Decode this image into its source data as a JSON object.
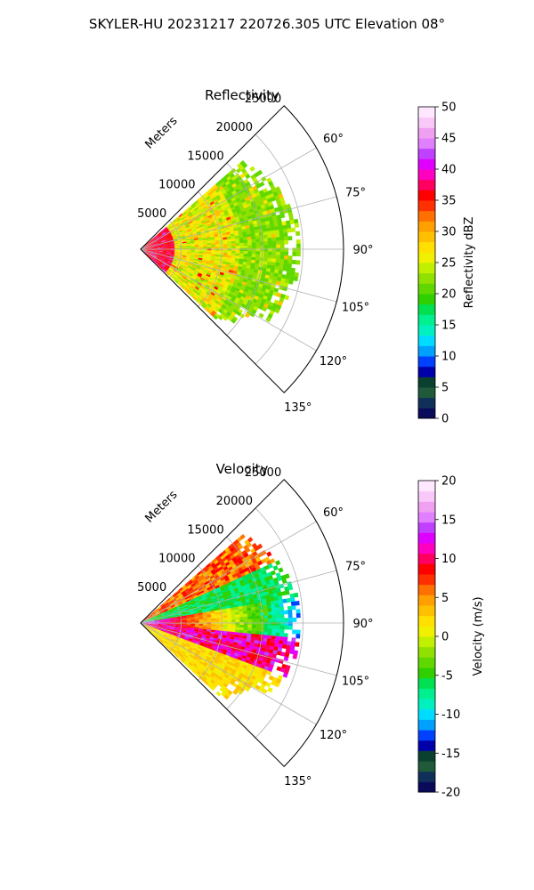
{
  "figure": {
    "suptitle": "SKYLER-HU  20231217  220726.305 UTC Elevation 08°"
  },
  "chart_data": [
    {
      "type": "heatmap",
      "subtype": "polar-sector",
      "title": "Reflectivity",
      "range_axis_label": "Meters",
      "range_ticks": [
        5000,
        10000,
        15000,
        20000,
        25000
      ],
      "range_max": 25000,
      "theta_ticks": [
        60,
        75,
        90,
        105,
        120,
        135
      ],
      "theta_tick_labels": [
        "60°",
        "75°",
        "90°",
        "105°",
        "120°",
        "135°"
      ],
      "theta_range": [
        45,
        135
      ],
      "grid": true,
      "colorbar": {
        "label": "Reflectivity dBZ",
        "min": 0,
        "max": 50,
        "ticks": [
          0,
          5,
          10,
          15,
          20,
          25,
          30,
          35,
          40,
          45,
          50
        ],
        "colors": [
          "#0a0a5a",
          "#10305a",
          "#1f5a3a",
          "#0a4030",
          "#0000aa",
          "#0040ff",
          "#00a0ff",
          "#00dcff",
          "#00f0c0",
          "#00f090",
          "#00e050",
          "#30d000",
          "#60d800",
          "#90e000",
          "#c0f000",
          "#f0f000",
          "#ffe000",
          "#ffc000",
          "#ffa000",
          "#ff7000",
          "#ff3000",
          "#ff0000",
          "#ff0060",
          "#ff00c0",
          "#e000ff",
          "#c040ff",
          "#e080ff",
          "#f0a0f0",
          "#f8c8f8",
          "#ffe8ff"
        ]
      },
      "field_description_values": {
        "near_range_dbz": [
          35,
          38
        ],
        "mid_range_dbz": [
          22,
          30
        ],
        "far_range_dbz": [
          20,
          24
        ],
        "max_data_range_m": 20000
      }
    },
    {
      "type": "heatmap",
      "subtype": "polar-sector",
      "title": "Velocity",
      "range_axis_label": "Meters",
      "range_ticks": [
        5000,
        10000,
        15000,
        20000,
        25000
      ],
      "range_max": 25000,
      "theta_ticks": [
        60,
        75,
        90,
        105,
        120,
        135
      ],
      "theta_tick_labels": [
        "60°",
        "75°",
        "90°",
        "105°",
        "120°",
        "135°"
      ],
      "theta_range": [
        45,
        135
      ],
      "grid": true,
      "colorbar": {
        "label": "Velocity (m/s)",
        "min": -20,
        "max": 20,
        "ticks": [
          -20,
          -15,
          -10,
          -5,
          0,
          5,
          10,
          15,
          20
        ],
        "colors": [
          "#0a0a5a",
          "#10305a",
          "#1f5a3a",
          "#0a4030",
          "#0000aa",
          "#0040ff",
          "#00a0ff",
          "#00dcff",
          "#00f0c0",
          "#00f090",
          "#00e050",
          "#30d000",
          "#60d800",
          "#90e000",
          "#c0f000",
          "#f0f000",
          "#ffe000",
          "#ffc000",
          "#ffa000",
          "#ff7000",
          "#ff3000",
          "#ff0000",
          "#ff0060",
          "#ff00c0",
          "#e000ff",
          "#c040ff",
          "#e080ff",
          "#f0a0f0",
          "#f8c8f8",
          "#ffe8ff"
        ]
      },
      "field_description_values": {
        "north_sector_ms": [
          3,
          9
        ],
        "band_65_80_deg_ms": [
          -8,
          -4
        ],
        "band_80_95_deg_ms": [
          -12,
          15
        ],
        "band_95_110_deg_ms": [
          8,
          14
        ],
        "south_sector_ms": [
          0,
          4
        ],
        "max_data_range_m": 20000
      }
    }
  ]
}
